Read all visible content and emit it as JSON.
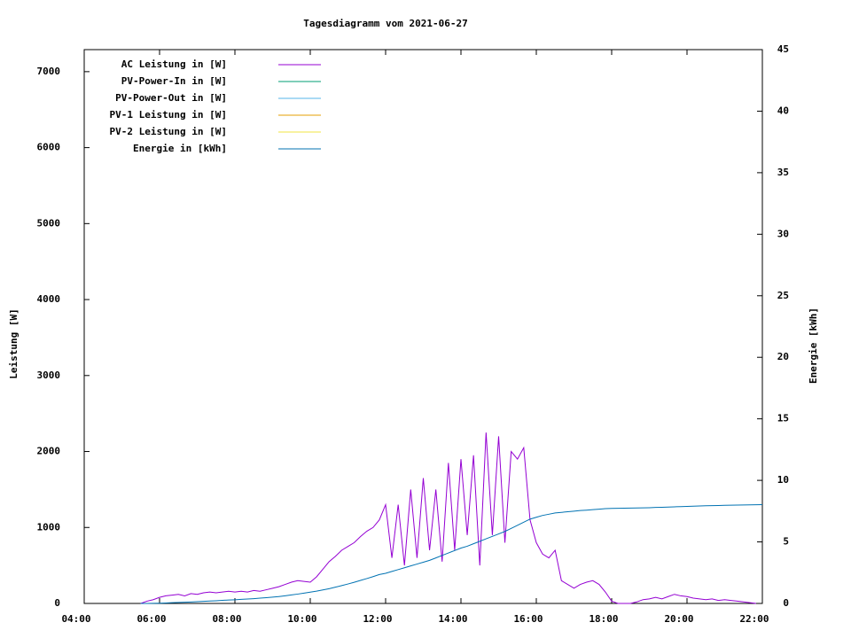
{
  "chart_data": {
    "type": "line",
    "title": "Tagesdiagramm vom 2021-06-27",
    "y_label": "Leistung [W]",
    "y2_label": "Energie [kWh]",
    "xlim": [
      240,
      1320
    ],
    "xticks": [
      {
        "value": 240,
        "label": "04:00"
      },
      {
        "value": 360,
        "label": "06:00"
      },
      {
        "value": 480,
        "label": "08:00"
      },
      {
        "value": 600,
        "label": "10:00"
      },
      {
        "value": 720,
        "label": "12:00"
      },
      {
        "value": 840,
        "label": "14:00"
      },
      {
        "value": 960,
        "label": "16:00"
      },
      {
        "value": 1080,
        "label": "18:00"
      },
      {
        "value": 1200,
        "label": "20:00"
      },
      {
        "value": 1320,
        "label": "22:00"
      }
    ],
    "ylim": [
      0,
      7290
    ],
    "yticks": [
      0,
      1000,
      2000,
      3000,
      4000,
      5000,
      6000,
      7000
    ],
    "y2lim": [
      0,
      45
    ],
    "y2ticks": [
      0,
      5,
      10,
      15,
      20,
      25,
      30,
      35,
      40,
      45
    ],
    "legend": "top-left",
    "x": [
      330,
      340,
      350,
      360,
      370,
      380,
      390,
      400,
      410,
      420,
      430,
      440,
      450,
      460,
      470,
      480,
      490,
      500,
      510,
      520,
      530,
      540,
      550,
      560,
      570,
      580,
      590,
      600,
      610,
      620,
      630,
      640,
      650,
      660,
      670,
      680,
      690,
      700,
      710,
      720,
      730,
      740,
      750,
      760,
      770,
      780,
      790,
      800,
      810,
      820,
      830,
      840,
      850,
      860,
      870,
      880,
      890,
      900,
      910,
      920,
      930,
      940,
      950,
      960,
      970,
      980,
      990,
      1000,
      1010,
      1020,
      1030,
      1040,
      1050,
      1060,
      1070,
      1080,
      1090,
      1100,
      1110,
      1120,
      1130,
      1140,
      1150,
      1160,
      1170,
      1180,
      1190,
      1200,
      1210,
      1220,
      1230,
      1240,
      1250,
      1260,
      1270,
      1280,
      1290,
      1300,
      1310,
      1320
    ],
    "series": [
      {
        "name": "AC Leistung in [W]",
        "color": "#9400d3",
        "values": [
          0,
          30,
          50,
          80,
          100,
          110,
          120,
          100,
          130,
          120,
          140,
          150,
          140,
          150,
          160,
          150,
          160,
          150,
          170,
          160,
          180,
          200,
          220,
          250,
          280,
          300,
          290,
          280,
          350,
          450,
          550,
          620,
          700,
          750,
          800,
          880,
          950,
          1000,
          1100,
          1300,
          600,
          1300,
          500,
          1500,
          600,
          1650,
          700,
          1500,
          550,
          1850,
          700,
          1900,
          900,
          1950,
          500,
          2250,
          900,
          2200,
          800,
          2000,
          1900,
          2050,
          1100,
          800,
          650,
          600,
          700,
          300,
          250,
          200,
          250,
          280,
          300,
          250,
          150,
          30,
          0,
          0,
          0,
          20,
          50,
          60,
          80,
          60,
          90,
          120,
          100,
          90,
          70,
          60,
          50,
          60,
          40,
          50,
          40,
          30,
          20,
          10,
          0,
          null
        ]
      },
      {
        "name": "PV-Power-In in [W]",
        "color": "#009e73",
        "values": [
          null,
          null,
          null,
          null,
          null,
          null,
          null,
          null,
          null,
          null,
          null,
          null,
          null,
          null,
          null,
          null,
          null,
          null,
          null,
          null,
          null,
          null,
          null,
          null,
          null,
          null,
          null,
          null,
          null,
          null,
          null,
          null,
          null,
          null,
          null,
          null,
          null,
          null,
          null,
          null,
          null,
          null,
          null,
          null,
          null,
          null,
          null,
          null,
          null,
          null,
          null,
          null,
          null,
          null,
          null,
          null,
          null,
          null,
          null,
          null,
          null,
          null,
          null,
          null,
          null,
          null,
          null,
          null,
          null,
          null,
          null,
          null,
          null,
          null,
          null,
          null,
          null,
          null,
          null,
          null,
          null,
          null,
          null,
          null,
          null,
          null,
          null,
          null,
          null,
          null,
          null,
          null,
          null,
          null,
          null,
          null,
          null,
          null,
          null,
          null
        ]
      },
      {
        "name": "PV-Power-Out in [W]",
        "color": "#56b4e9",
        "values": [
          null,
          null,
          null,
          null,
          null,
          null,
          null,
          null,
          null,
          null,
          null,
          null,
          null,
          null,
          null,
          null,
          null,
          null,
          null,
          null,
          null,
          null,
          null,
          null,
          null,
          null,
          null,
          null,
          null,
          null,
          null,
          null,
          null,
          null,
          null,
          null,
          null,
          null,
          null,
          null,
          null,
          null,
          null,
          null,
          null,
          null,
          null,
          null,
          null,
          null,
          null,
          null,
          null,
          null,
          null,
          null,
          null,
          null,
          null,
          null,
          null,
          null,
          null,
          null,
          null,
          null,
          null,
          null,
          null,
          null,
          null,
          null,
          null,
          null,
          null,
          null,
          null,
          null,
          null,
          null,
          null,
          null,
          null,
          null,
          null,
          null,
          null,
          null,
          null,
          null,
          null,
          null,
          null,
          null,
          null,
          null,
          null,
          null,
          null,
          null
        ]
      },
      {
        "name": "PV-1 Leistung in [W]",
        "color": "#e69f00",
        "values": [
          null,
          null,
          null,
          null,
          null,
          null,
          null,
          null,
          null,
          null,
          null,
          null,
          null,
          null,
          null,
          null,
          null,
          null,
          null,
          null,
          null,
          null,
          null,
          null,
          null,
          null,
          null,
          null,
          null,
          null,
          null,
          null,
          null,
          null,
          null,
          null,
          null,
          null,
          null,
          null,
          null,
          null,
          null,
          null,
          null,
          null,
          null,
          null,
          null,
          null,
          null,
          null,
          null,
          null,
          null,
          null,
          null,
          null,
          null,
          null,
          null,
          null,
          null,
          null,
          null,
          null,
          null,
          null,
          null,
          null,
          null,
          null,
          null,
          null,
          null,
          null,
          null,
          null,
          null,
          null,
          null,
          null,
          null,
          null,
          null,
          null,
          null,
          null,
          null,
          null,
          null,
          null,
          null,
          null,
          null,
          null,
          null,
          null,
          null,
          null
        ]
      },
      {
        "name": "PV-2 Leistung in [W]",
        "color": "#f0e442",
        "values": [
          null,
          null,
          null,
          null,
          null,
          null,
          null,
          null,
          null,
          null,
          null,
          null,
          null,
          null,
          null,
          null,
          null,
          null,
          null,
          null,
          null,
          null,
          null,
          null,
          null,
          null,
          null,
          null,
          null,
          null,
          null,
          null,
          null,
          null,
          null,
          null,
          null,
          null,
          null,
          null,
          null,
          null,
          null,
          null,
          null,
          null,
          null,
          null,
          null,
          null,
          null,
          null,
          null,
          null,
          null,
          null,
          null,
          null,
          null,
          null,
          null,
          null,
          null,
          null,
          null,
          null,
          null,
          null,
          null,
          null,
          null,
          null,
          null,
          null,
          null,
          null,
          null,
          null,
          null,
          null,
          null,
          null,
          null,
          null,
          null,
          null,
          null,
          null,
          null,
          null,
          null,
          null,
          null,
          null,
          null,
          null,
          null,
          null,
          null,
          null
        ]
      },
      {
        "name": "Energie in [kWh]",
        "color": "#0072b2",
        "axis": "y2",
        "values": [
          0,
          0,
          0.01,
          0.02,
          0.04,
          0.06,
          0.08,
          0.1,
          0.12,
          0.14,
          0.17,
          0.2,
          0.22,
          0.25,
          0.28,
          0.3,
          0.33,
          0.36,
          0.39,
          0.43,
          0.47,
          0.51,
          0.56,
          0.62,
          0.69,
          0.76,
          0.84,
          0.92,
          1.0,
          1.1,
          1.2,
          1.32,
          1.45,
          1.58,
          1.72,
          1.87,
          2.02,
          2.18,
          2.35,
          2.45,
          2.6,
          2.75,
          2.9,
          3.05,
          3.2,
          3.35,
          3.5,
          3.7,
          3.9,
          4.1,
          4.3,
          4.5,
          4.65,
          4.85,
          5.05,
          5.25,
          5.45,
          5.65,
          5.85,
          6.1,
          6.35,
          6.6,
          6.85,
          7.0,
          7.15,
          7.25,
          7.35,
          7.4,
          7.45,
          7.5,
          7.55,
          7.58,
          7.62,
          7.66,
          7.7,
          7.72,
          7.73,
          7.74,
          7.75,
          7.76,
          7.77,
          7.78,
          7.8,
          7.81,
          7.83,
          7.85,
          7.87,
          7.88,
          7.9,
          7.92,
          7.94,
          7.95,
          7.96,
          7.97,
          7.98,
          7.99,
          8.0,
          8.01,
          8.02,
          8.03
        ]
      }
    ]
  }
}
